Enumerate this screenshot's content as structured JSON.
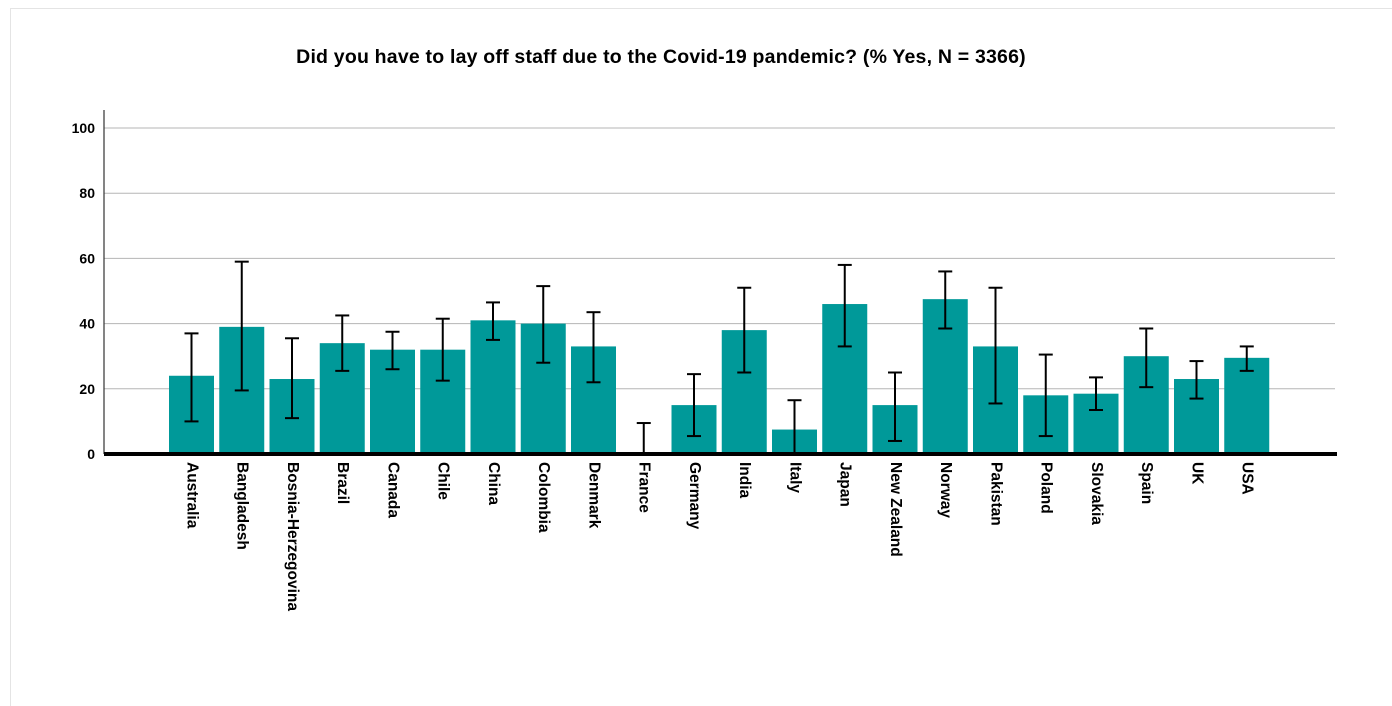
{
  "chart_data": {
    "type": "bar",
    "title": "Did you have to lay off staff due to the Covid-19 pandemic? (% Yes, N = 3366)",
    "xlabel": "",
    "ylabel": "",
    "ylim": [
      0,
      100
    ],
    "yticks": [
      0,
      20,
      40,
      60,
      80,
      100
    ],
    "grid": true,
    "bar_color": "#009999",
    "error_bar_color": "#000000",
    "categories": [
      "Australia",
      "Bangladesh",
      "Bosnia-Herzegovina",
      "Brazil",
      "Canada",
      "Chile",
      "China",
      "Colombia",
      "Denmark",
      "France",
      "Germany",
      "India",
      "Italy",
      "Japan",
      "New Zealand",
      "Norway",
      "Pakistan",
      "Poland",
      "Slovakia",
      "Spain",
      "UK",
      "USA"
    ],
    "values": [
      24,
      39,
      23,
      34,
      32,
      32,
      41,
      40,
      33,
      0,
      15,
      38,
      7.5,
      46,
      15,
      47.5,
      33,
      18,
      18.5,
      30,
      23,
      29.5
    ],
    "error_low": [
      10,
      19.5,
      11,
      25.5,
      26,
      22.5,
      35,
      28,
      22,
      0,
      5.5,
      25,
      0,
      33,
      4,
      38.5,
      15.5,
      5.5,
      13.5,
      20.5,
      17,
      25.5
    ],
    "error_high": [
      37,
      59,
      35.5,
      42.5,
      37.5,
      41.5,
      46.5,
      51.5,
      43.5,
      9.5,
      24.5,
      51,
      16.5,
      58,
      25,
      56,
      51,
      30.5,
      23.5,
      38.5,
      28.5,
      33
    ]
  }
}
